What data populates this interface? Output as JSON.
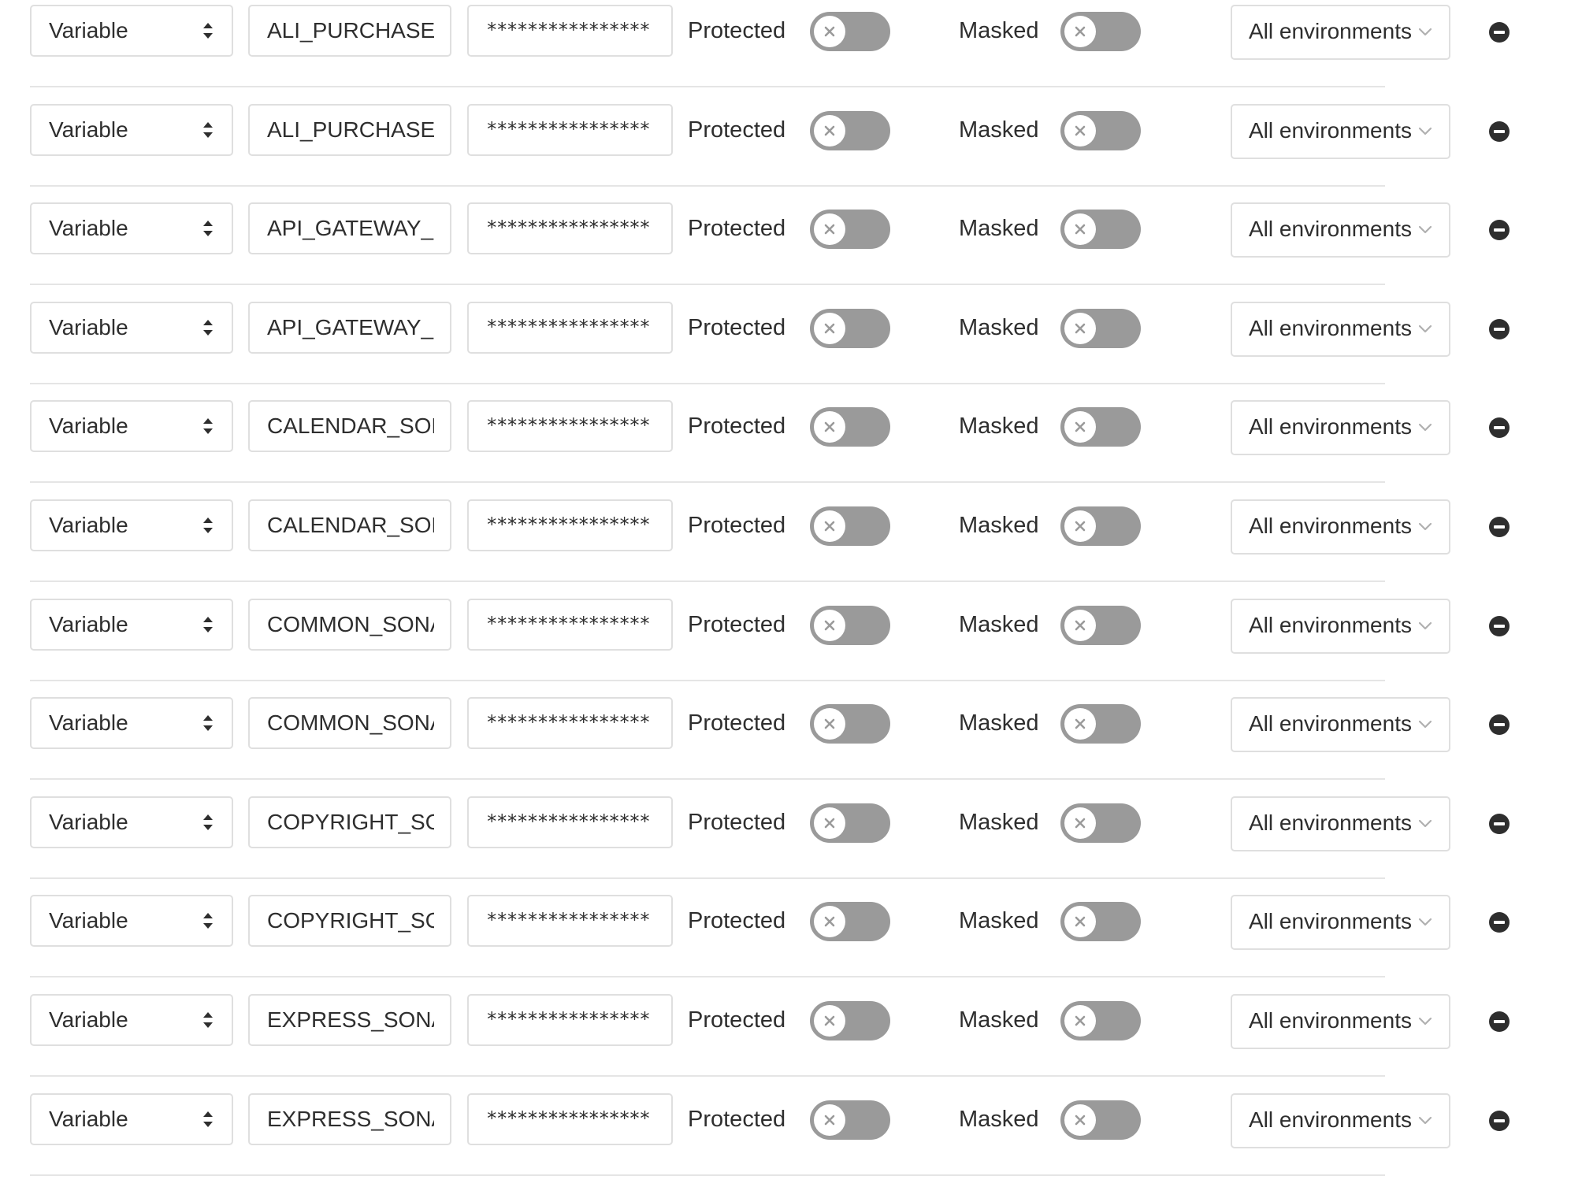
{
  "rows": [
    {
      "type": "Variable",
      "key": "ALI_PURCHASE_SONAR_TOKEN",
      "key_visible": "ALI_PURCHASE_S",
      "value": "****************",
      "protected_label": "Protected",
      "protected": false,
      "masked_label": "Masked",
      "masked": false,
      "environment": "All environments"
    },
    {
      "type": "Variable",
      "key": "ALI_PURCHASE_SONAR_TOKEN",
      "key_visible": "ALI_PURCHASE_S",
      "value": "****************",
      "protected_label": "Protected",
      "protected": false,
      "masked_label": "Masked",
      "masked": false,
      "environment": "All environments"
    },
    {
      "type": "Variable",
      "key": "API_GATEWAY_SONAR_TOKEN",
      "key_visible": "API_GATEWAY_SC",
      "value": "****************",
      "protected_label": "Protected",
      "protected": false,
      "masked_label": "Masked",
      "masked": false,
      "environment": "All environments"
    },
    {
      "type": "Variable",
      "key": "API_GATEWAY_SONAR_TOKEN",
      "key_visible": "API_GATEWAY_SC",
      "value": "****************",
      "protected_label": "Protected",
      "protected": false,
      "masked_label": "Masked",
      "masked": false,
      "environment": "All environments"
    },
    {
      "type": "Variable",
      "key": "CALENDAR_SONAR_TOKEN",
      "key_visible": "CALENDAR_SON",
      "value": "****************",
      "protected_label": "Protected",
      "protected": false,
      "masked_label": "Masked",
      "masked": false,
      "environment": "All environments"
    },
    {
      "type": "Variable",
      "key": "CALENDAR_SONAR_TOKEN",
      "key_visible": "CALENDAR_SON",
      "value": "****************",
      "protected_label": "Protected",
      "protected": false,
      "masked_label": "Masked",
      "masked": false,
      "environment": "All environments"
    },
    {
      "type": "Variable",
      "key": "COMMON_SONAR_TOKEN",
      "key_visible": "COMMON_SONA",
      "value": "****************",
      "protected_label": "Protected",
      "protected": false,
      "masked_label": "Masked",
      "masked": false,
      "environment": "All environments"
    },
    {
      "type": "Variable",
      "key": "COMMON_SONAR_TOKEN",
      "key_visible": "COMMON_SONA",
      "value": "****************",
      "protected_label": "Protected",
      "protected": false,
      "masked_label": "Masked",
      "masked": false,
      "environment": "All environments"
    },
    {
      "type": "Variable",
      "key": "COPYRIGHT_SONAR_TOKEN",
      "key_visible": "COPYRIGHT_SON",
      "value": "****************",
      "protected_label": "Protected",
      "protected": false,
      "masked_label": "Masked",
      "masked": false,
      "environment": "All environments"
    },
    {
      "type": "Variable",
      "key": "COPYRIGHT_SONAR_TOKEN",
      "key_visible": "COPYRIGHT_SON",
      "value": "****************",
      "protected_label": "Protected",
      "protected": false,
      "masked_label": "Masked",
      "masked": false,
      "environment": "All environments"
    },
    {
      "type": "Variable",
      "key": "EXPRESS_SONAR_TOKEN",
      "key_visible": "EXPRESS_SONAI",
      "value": "****************",
      "protected_label": "Protected",
      "protected": false,
      "masked_label": "Masked",
      "masked": false,
      "environment": "All environments"
    },
    {
      "type": "Variable",
      "key": "EXPRESS_SONAR_TOKEN",
      "key_visible": "EXPRESS_SONAI",
      "value": "****************",
      "protected_label": "Protected",
      "protected": false,
      "masked_label": "Masked",
      "masked": false,
      "environment": "All environments"
    }
  ],
  "icons": {
    "type_select": "sort-arrows-icon",
    "toggle_off": "close-icon",
    "environment_select": "chevron-down-icon",
    "remove": "remove-circle-icon"
  },
  "colors": {
    "toggle_off": "#9a9a9a",
    "border": "#dfdfdf",
    "separator": "#e5e5e5",
    "text": "#2e2e2e"
  }
}
